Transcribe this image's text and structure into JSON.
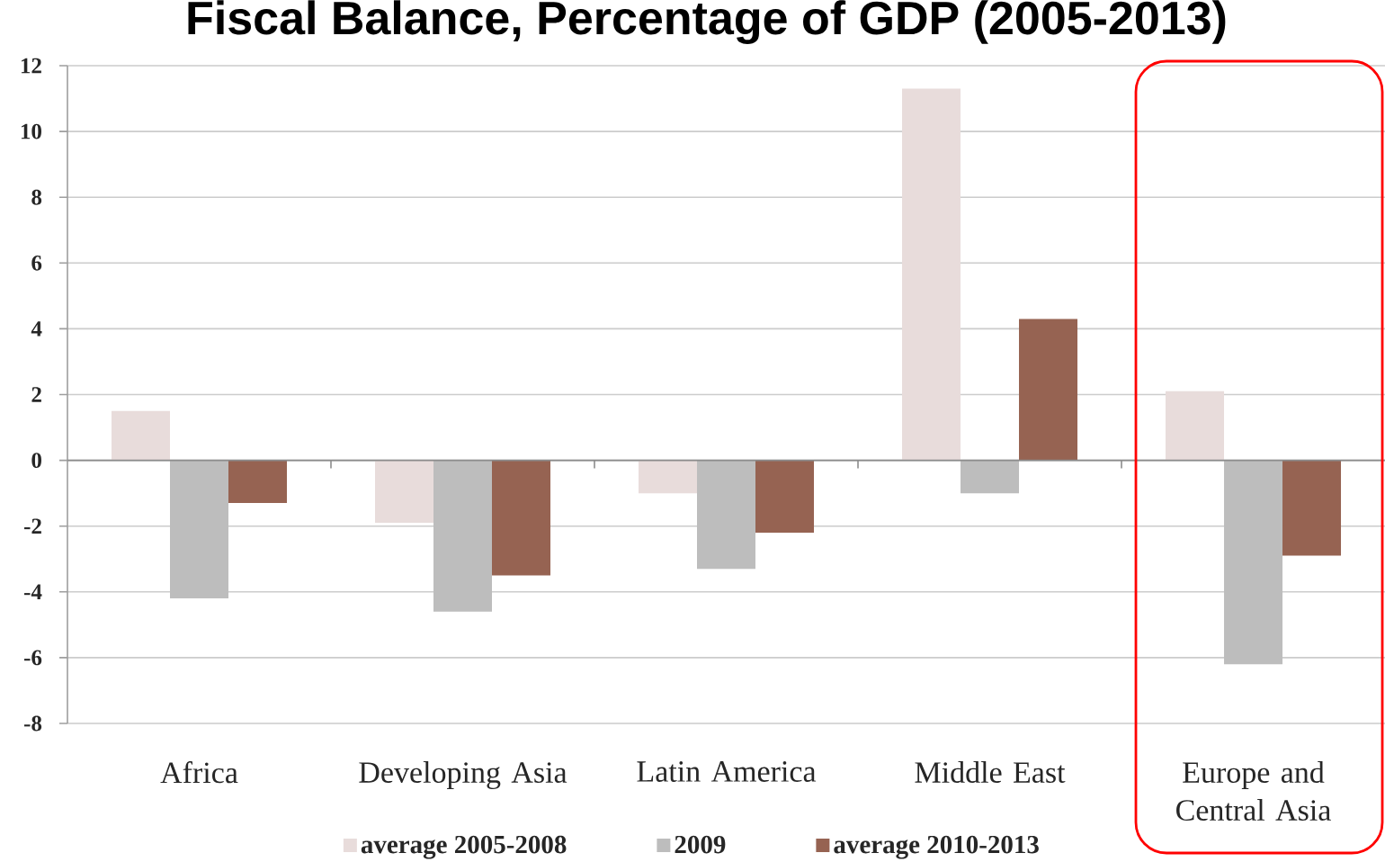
{
  "chart_data": {
    "type": "bar",
    "title": "Fiscal Balance, Percentage of GDP (2005-2013)",
    "categories": [
      "Africa",
      "Developing Asia",
      "Latin America",
      "Middle East",
      "Europe and Central Asia"
    ],
    "series": [
      {
        "name": "average 2005-2008",
        "color": "#e8dcdb",
        "values": [
          1.5,
          -1.9,
          -1.0,
          11.3,
          2.1
        ]
      },
      {
        "name": "2009",
        "color": "#bdbdbd",
        "values": [
          -4.2,
          -4.6,
          -3.3,
          -1.0,
          -6.2
        ]
      },
      {
        "name": "average 2010-2013",
        "color": "#966352",
        "values": [
          -1.3,
          -3.5,
          -2.2,
          4.3,
          -2.9
        ]
      }
    ],
    "ylim": [
      -8,
      12
    ],
    "yticks": [
      -8,
      -6,
      -4,
      -2,
      0,
      2,
      4,
      6,
      8,
      10,
      12
    ],
    "grid": "y",
    "legend": "bottom"
  }
}
